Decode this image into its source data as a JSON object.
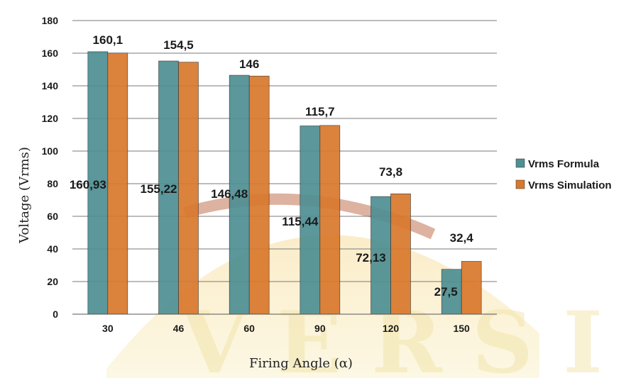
{
  "chart_data": {
    "type": "bar",
    "categories": [
      "30",
      "46",
      "60",
      "90",
      "120",
      "150"
    ],
    "series": [
      {
        "name": "Vrms Formula",
        "values": [
          160.93,
          155.22,
          146.48,
          115.44,
          72.13,
          27.5
        ],
        "labels": [
          "160,93",
          "155,22",
          "146,48",
          "115,44",
          "72,13",
          "27,5"
        ],
        "color": "#4e8f93"
      },
      {
        "name": "Vrms Simulation",
        "values": [
          160.1,
          154.5,
          146,
          115.7,
          73.8,
          32.4
        ],
        "labels": [
          "160,1",
          "154,5",
          "146",
          "115,7",
          "73,8",
          "32,4"
        ],
        "color": "#d9782c"
      }
    ],
    "xlabel": "Firing Angle (α)",
    "ylabel": "Voltage (Vrms)",
    "ylim": [
      0,
      180
    ],
    "yticks": [
      0,
      20,
      40,
      60,
      80,
      100,
      120,
      140,
      160,
      180
    ],
    "grid": true,
    "legend_position": "right"
  },
  "watermark": {
    "text": "VERSI",
    "colors": [
      "#f3c842",
      "#c46a3a"
    ]
  }
}
